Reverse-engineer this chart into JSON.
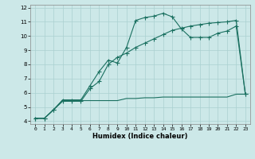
{
  "title": "",
  "xlabel": "Humidex (Indice chaleur)",
  "bg_color": "#cce8e8",
  "grid_color": "#aad0d0",
  "line_color": "#1a7060",
  "xlim": [
    -0.5,
    23.5
  ],
  "ylim": [
    3.8,
    12.2
  ],
  "xticks": [
    0,
    1,
    2,
    3,
    4,
    5,
    6,
    7,
    8,
    9,
    10,
    11,
    12,
    13,
    14,
    15,
    16,
    17,
    18,
    19,
    20,
    21,
    22,
    23
  ],
  "yticks": [
    4,
    5,
    6,
    7,
    8,
    9,
    10,
    11,
    12
  ],
  "line1_x": [
    0,
    1,
    2,
    3,
    4,
    5,
    6,
    7,
    8,
    9,
    10,
    11,
    12,
    13,
    14,
    15,
    16,
    17,
    18,
    19,
    20,
    21,
    22,
    23
  ],
  "line1_y": [
    4.2,
    4.2,
    4.8,
    5.5,
    5.5,
    5.5,
    6.5,
    7.5,
    8.3,
    8.1,
    9.2,
    11.1,
    11.3,
    11.4,
    11.6,
    11.35,
    10.5,
    9.9,
    9.9,
    9.9,
    10.2,
    10.35,
    10.7,
    5.9
  ],
  "line2_x": [
    0,
    1,
    2,
    3,
    4,
    5,
    6,
    7,
    8,
    9,
    10,
    11,
    12,
    13,
    14,
    15,
    16,
    17,
    18,
    19,
    20,
    21,
    22,
    23
  ],
  "line2_y": [
    4.2,
    4.2,
    4.8,
    5.45,
    5.45,
    5.45,
    5.45,
    5.45,
    5.45,
    5.45,
    5.6,
    5.6,
    5.65,
    5.65,
    5.7,
    5.7,
    5.7,
    5.7,
    5.7,
    5.7,
    5.7,
    5.7,
    5.9,
    5.9
  ],
  "line3_x": [
    0,
    1,
    2,
    3,
    4,
    5,
    6,
    7,
    8,
    9,
    10,
    11,
    12,
    13,
    14,
    15,
    16,
    17,
    18,
    19,
    20,
    21,
    22,
    23
  ],
  "line3_y": [
    4.2,
    4.2,
    4.8,
    5.4,
    5.4,
    5.4,
    6.3,
    6.8,
    8.0,
    8.5,
    8.8,
    9.2,
    9.5,
    9.8,
    10.1,
    10.4,
    10.55,
    10.7,
    10.8,
    10.9,
    10.95,
    11.0,
    11.1,
    5.9
  ]
}
